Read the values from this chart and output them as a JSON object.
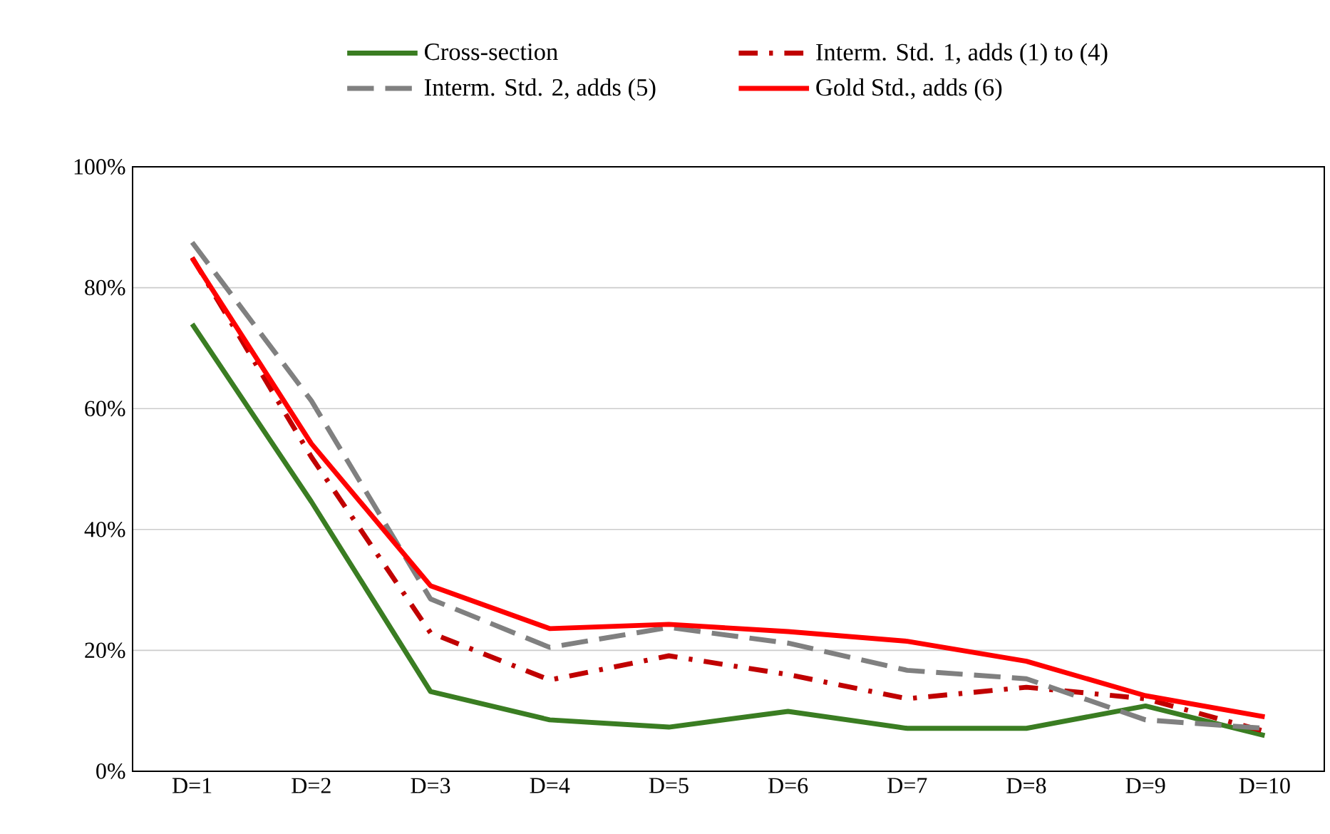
{
  "chart_data": {
    "type": "line",
    "categories": [
      "D=1",
      "D=2",
      "D=3",
      "D=4",
      "D=5",
      "D=6",
      "D=7",
      "D=8",
      "D=9",
      "D=10"
    ],
    "series": [
      {
        "name": "Cross-section",
        "color": "#3a7d22",
        "line_style": "solid",
        "values": [
          74,
          44.6,
          13.2,
          8.5,
          7.3,
          9.9,
          7.1,
          7.1,
          10.8,
          5.9
        ]
      },
      {
        "name": "Interm. Std. 1, adds (1) to (4)",
        "color": "#c00000",
        "line_style": "dashdot",
        "values": [
          85,
          52,
          22.9,
          15.1,
          19.1,
          16,
          12,
          13.9,
          12,
          6.6
        ]
      },
      {
        "name": "Interm. Std. 2, adds (5)",
        "color": "#808080",
        "line_style": "dashed",
        "values": [
          87.5,
          61.3,
          28.5,
          20.5,
          23.8,
          21.2,
          16.7,
          15.3,
          8.5,
          7.1
        ]
      },
      {
        "name": "Gold Std., adds (6)",
        "color": "#ff0000",
        "line_style": "solid",
        "values": [
          84.9,
          54.2,
          30.7,
          23.6,
          24.3,
          23.1,
          21.5,
          18.2,
          12.5,
          9.0
        ]
      }
    ],
    "ylim": [
      0,
      100
    ],
    "yticks": [
      {
        "value": 0,
        "label": "0%"
      },
      {
        "value": 20,
        "label": "20%"
      },
      {
        "value": 40,
        "label": "40%"
      },
      {
        "value": 60,
        "label": "60%"
      },
      {
        "value": 80,
        "label": "80%"
      },
      {
        "value": 100,
        "label": "100%"
      }
    ],
    "grid": "y",
    "legend": "top",
    "marker": "none"
  }
}
